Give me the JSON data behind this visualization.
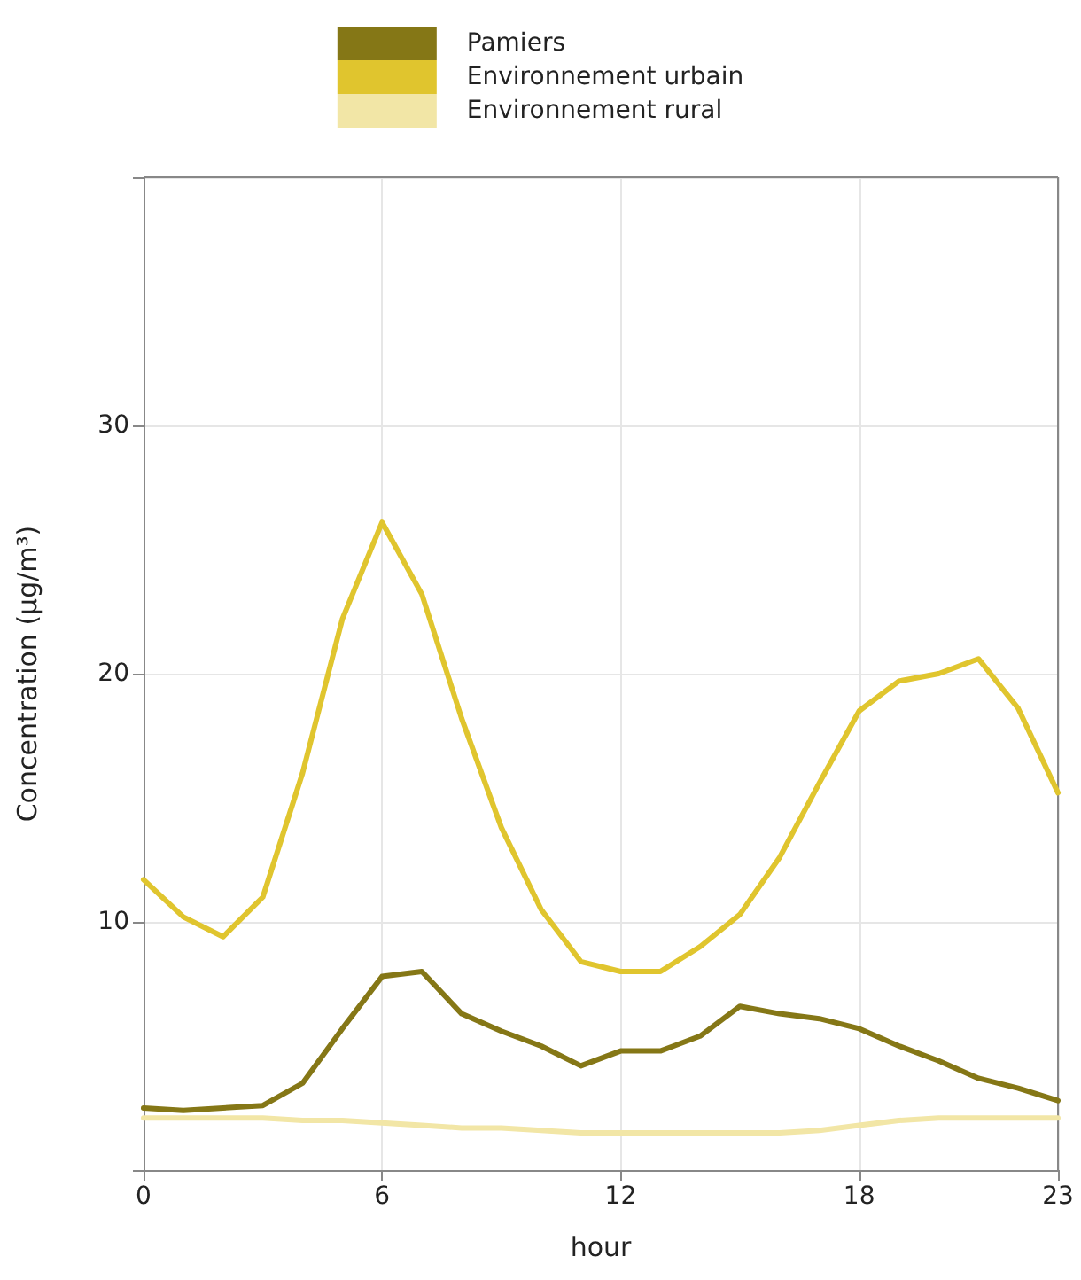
{
  "chart_data": {
    "type": "line",
    "xlabel": "hour",
    "ylabel": "Concentration (µg/m³)",
    "x": [
      0,
      1,
      2,
      3,
      4,
      5,
      6,
      7,
      8,
      9,
      10,
      11,
      12,
      13,
      14,
      15,
      16,
      17,
      18,
      19,
      20,
      21,
      22,
      23
    ],
    "series": [
      {
        "name": "Pamiers",
        "color": "#857716",
        "values": [
          2.5,
          2.4,
          2.5,
          2.6,
          3.5,
          5.7,
          7.8,
          8.0,
          6.3,
          5.6,
          5.0,
          4.2,
          4.8,
          4.8,
          5.4,
          6.6,
          6.3,
          6.1,
          5.7,
          5.0,
          4.4,
          3.7,
          3.3,
          2.8
        ]
      },
      {
        "name": "Environnement urbain",
        "color": "#e0c52e",
        "values": [
          11.7,
          10.2,
          9.4,
          11.0,
          16.0,
          22.2,
          26.1,
          23.2,
          18.2,
          13.8,
          10.5,
          8.4,
          8.0,
          8.0,
          9.0,
          10.3,
          12.6,
          15.6,
          18.5,
          19.7,
          20.0,
          20.6,
          18.6,
          15.2
        ]
      },
      {
        "name": "Environnement rural",
        "color": "#f2e6a6",
        "values": [
          2.1,
          2.1,
          2.1,
          2.1,
          2.0,
          2.0,
          1.9,
          1.8,
          1.7,
          1.7,
          1.6,
          1.5,
          1.5,
          1.5,
          1.5,
          1.5,
          1.5,
          1.6,
          1.8,
          2.0,
          2.1,
          2.1,
          2.1,
          2.1
        ]
      }
    ],
    "xlim": [
      0,
      23
    ],
    "xticks": [
      0,
      6,
      12,
      18,
      23
    ],
    "ylim": [
      0,
      40
    ],
    "yticks": [
      {
        "value": 0,
        "label": null
      },
      10,
      20,
      30,
      {
        "value": 40,
        "label": null
      }
    ],
    "grid": true,
    "legend": "top",
    "marker": "none",
    "line_style": "solid"
  }
}
